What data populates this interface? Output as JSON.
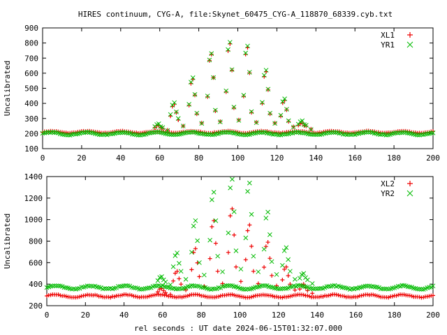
{
  "title": "HIRES continuum, CYG-A, file:Skynet_60475_CYG-A_118870_68339.cyb.txt",
  "xlabel": "rel seconds : UT date 2024-06-15T01:32:07.000",
  "colors": {
    "red": "#ee0000",
    "green": "#00bb00",
    "axis": "#000000"
  },
  "chart_data": [
    {
      "type": "scatter",
      "ylabel": "Uncalibrated",
      "xlim": [
        0,
        200
      ],
      "ylim": [
        100,
        900
      ],
      "xticks": [
        0,
        20,
        40,
        60,
        80,
        100,
        120,
        140,
        160,
        180,
        200
      ],
      "yticks": [
        100,
        200,
        300,
        400,
        500,
        600,
        700,
        800,
        900
      ],
      "legend_position": "top-right",
      "series": [
        {
          "name": "XL1",
          "marker": "plus",
          "color": "#ee0000",
          "baseline": 210,
          "ripple": 6,
          "peaks": [
            [
              59.5,
              255
            ],
            [
              67.5,
              395
            ],
            [
              77,
              560
            ],
            [
              86.5,
              725
            ],
            [
              96,
              795
            ],
            [
              105,
              770
            ],
            [
              114.5,
              610
            ],
            [
              124,
              420
            ],
            [
              133,
              270
            ]
          ],
          "low_peaks": [
            [
              59.5,
              235
            ],
            [
              67.5,
              290
            ],
            [
              77,
              330
            ],
            [
              86.5,
              350
            ],
            [
              96,
              370
            ],
            [
              105,
              340
            ],
            [
              114.5,
              330
            ],
            [
              124,
              280
            ],
            [
              133,
              250
            ]
          ]
        },
        {
          "name": "YR1",
          "marker": "cross",
          "color": "#00bb00",
          "baseline": 200,
          "ripple": 8,
          "peaks": [
            [
              59.5,
              265
            ],
            [
              67.5,
              405
            ],
            [
              77,
              570
            ],
            [
              86.5,
              730
            ],
            [
              96,
              805
            ],
            [
              105,
              780
            ],
            [
              114.5,
              620
            ],
            [
              124,
              430
            ],
            [
              133,
              285
            ]
          ],
          "low_peaks": [
            [
              59.5,
              240
            ],
            [
              67.5,
              300
            ],
            [
              77,
              335
            ],
            [
              86.5,
              355
            ],
            [
              96,
              375
            ],
            [
              105,
              345
            ],
            [
              114.5,
              335
            ],
            [
              124,
              285
            ],
            [
              133,
              255
            ]
          ]
        }
      ]
    },
    {
      "type": "scatter",
      "ylabel": "Uncalibrated",
      "xlim": [
        0,
        200
      ],
      "ylim": [
        200,
        1400
      ],
      "xticks": [
        0,
        20,
        40,
        60,
        80,
        100,
        120,
        140,
        160,
        180,
        200
      ],
      "yticks": [
        200,
        400,
        600,
        800,
        1000,
        1200,
        1400
      ],
      "legend_position": "top-right",
      "series": [
        {
          "name": "XL2",
          "marker": "plus",
          "color": "#ee0000",
          "baseline": 290,
          "ripple": 12,
          "peaks": [
            [
              59.5,
              360
            ],
            [
              67.5,
              520
            ],
            [
              77,
              730
            ],
            [
              86.5,
              990
            ],
            [
              96,
              1100
            ],
            [
              105,
              950
            ],
            [
              114.5,
              790
            ],
            [
              124,
              560
            ],
            [
              133,
              400
            ]
          ],
          "low_peaks": [
            [
              59.5,
              320
            ],
            [
              67.5,
              400
            ],
            [
              77,
              470
            ],
            [
              86.5,
              520
            ],
            [
              96,
              560
            ],
            [
              105,
              520
            ],
            [
              114.5,
              480
            ],
            [
              124,
              400
            ],
            [
              133,
              340
            ]
          ]
        },
        {
          "name": "YR2",
          "marker": "cross",
          "color": "#00bb00",
          "baseline": 370,
          "ripple": 15,
          "peaks": [
            [
              59.5,
              470
            ],
            [
              67.5,
              690
            ],
            [
              77,
              990
            ],
            [
              86.5,
              1255
            ],
            [
              96,
              1375
            ],
            [
              105,
              1340
            ],
            [
              114.5,
              1070
            ],
            [
              124,
              740
            ],
            [
              133,
              500
            ]
          ],
          "low_peaks": [
            [
              59.5,
              420
            ],
            [
              67.5,
              520
            ],
            [
              77,
              600
            ],
            [
              86.5,
              660
            ],
            [
              96,
              710
            ],
            [
              105,
              660
            ],
            [
              114.5,
              610
            ],
            [
              124,
              520
            ],
            [
              133,
              440
            ]
          ]
        }
      ]
    }
  ]
}
